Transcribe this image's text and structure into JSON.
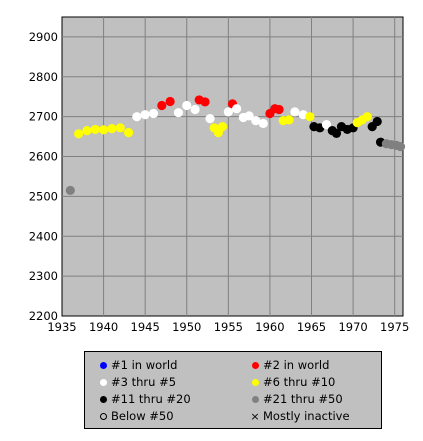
{
  "chart_data": {
    "type": "scatter",
    "title": "",
    "xlabel": "",
    "ylabel": "",
    "xlim": [
      1935,
      1976
    ],
    "ylim": [
      2200,
      2950
    ],
    "xticks": [
      1935,
      1940,
      1945,
      1950,
      1955,
      1960,
      1965,
      1970,
      1975
    ],
    "yticks": [
      2200,
      2300,
      2400,
      2500,
      2600,
      2700,
      2800,
      2900
    ],
    "grid": true,
    "legend_position": "bottom",
    "colors": {
      "plot_background": "#c0c0c0",
      "grid": "#808080",
      "red": "#ff0000",
      "white": "#ffffff",
      "yellow": "#ffff00",
      "black": "#000000",
      "gray": "#808080",
      "blue": "#0000ff"
    },
    "legend": [
      {
        "label": "#1 in world",
        "color": "#0000ff",
        "symbol": "dot"
      },
      {
        "label": "#2 in world",
        "color": "#ff0000",
        "symbol": "dot"
      },
      {
        "label": "#3 thru #5",
        "color": "#ffffff",
        "symbol": "dot"
      },
      {
        "label": "#6 thru #10",
        "color": "#ffff00",
        "symbol": "dot"
      },
      {
        "label": "#11 thru #20",
        "color": "#000000",
        "symbol": "dot"
      },
      {
        "label": "#21 thru #50",
        "color": "#808080",
        "symbol": "dot"
      },
      {
        "label": "Below #50",
        "color": "#000000",
        "symbol": "hollow"
      },
      {
        "label": "Mostly inactive",
        "color": "#000000",
        "symbol": "x"
      }
    ],
    "series": [
      {
        "color": "#808080",
        "points": [
          [
            1936.0,
            2515
          ]
        ]
      },
      {
        "color": "#ffff00",
        "points": [
          [
            1937.0,
            2657
          ],
          [
            1938.0,
            2665
          ],
          [
            1939.0,
            2668
          ],
          [
            1940.0,
            2667
          ],
          [
            1941.0,
            2670
          ],
          [
            1942.0,
            2672
          ],
          [
            1943.0,
            2660
          ]
        ]
      },
      {
        "color": "#ffffff",
        "points": [
          [
            1944.0,
            2700
          ],
          [
            1945.0,
            2705
          ],
          [
            1946.0,
            2708
          ]
        ]
      },
      {
        "color": "#ff0000",
        "points": [
          [
            1947.0,
            2728
          ],
          [
            1948.0,
            2738
          ]
        ]
      },
      {
        "color": "#ffffff",
        "points": [
          [
            1949.0,
            2710
          ],
          [
            1950.0,
            2728
          ],
          [
            1951.0,
            2718
          ]
        ]
      },
      {
        "color": "#ff0000",
        "points": [
          [
            1951.5,
            2742
          ],
          [
            1952.2,
            2737
          ]
        ]
      },
      {
        "color": "#ffffff",
        "points": [
          [
            1952.8,
            2695
          ]
        ]
      },
      {
        "color": "#ffff00",
        "points": [
          [
            1953.3,
            2672
          ],
          [
            1953.8,
            2660
          ],
          [
            1954.3,
            2675
          ]
        ]
      },
      {
        "color": "#ffffff",
        "points": [
          [
            1955.0,
            2712
          ]
        ]
      },
      {
        "color": "#ff0000",
        "points": [
          [
            1955.5,
            2732
          ]
        ]
      },
      {
        "color": "#ffffff",
        "points": [
          [
            1956.0,
            2720
          ],
          [
            1956.8,
            2698
          ],
          [
            1957.5,
            2702
          ],
          [
            1958.3,
            2690
          ],
          [
            1959.2,
            2683
          ]
        ]
      },
      {
        "color": "#ff0000",
        "points": [
          [
            1960.0,
            2708
          ],
          [
            1960.6,
            2720
          ],
          [
            1961.1,
            2718
          ]
        ]
      },
      {
        "color": "#ffff00",
        "points": [
          [
            1961.6,
            2690
          ],
          [
            1962.3,
            2692
          ]
        ]
      },
      {
        "color": "#ffffff",
        "points": [
          [
            1963.0,
            2712
          ],
          [
            1964.0,
            2705
          ]
        ]
      },
      {
        "color": "#ffff00",
        "points": [
          [
            1964.8,
            2700
          ]
        ]
      },
      {
        "color": "#000000",
        "points": [
          [
            1965.3,
            2675
          ],
          [
            1966.0,
            2672
          ]
        ]
      },
      {
        "color": "#ffffff",
        "points": [
          [
            1966.8,
            2680
          ]
        ]
      },
      {
        "color": "#000000",
        "points": [
          [
            1967.5,
            2665
          ],
          [
            1968.0,
            2658
          ],
          [
            1968.6,
            2675
          ],
          [
            1969.3,
            2668
          ],
          [
            1970.0,
            2672
          ]
        ]
      },
      {
        "color": "#ffff00",
        "points": [
          [
            1970.5,
            2685
          ],
          [
            1971.1,
            2692
          ],
          [
            1971.7,
            2700
          ]
        ]
      },
      {
        "color": "#000000",
        "points": [
          [
            1972.3,
            2675
          ],
          [
            1972.9,
            2688
          ]
        ]
      },
      {
        "color": "#000000",
        "points": [
          [
            1973.3,
            2636
          ]
        ]
      },
      {
        "color": "#808080",
        "points": [
          [
            1974.0,
            2632
          ],
          [
            1974.6,
            2630
          ],
          [
            1975.2,
            2628
          ],
          [
            1975.7,
            2625
          ]
        ]
      }
    ]
  }
}
